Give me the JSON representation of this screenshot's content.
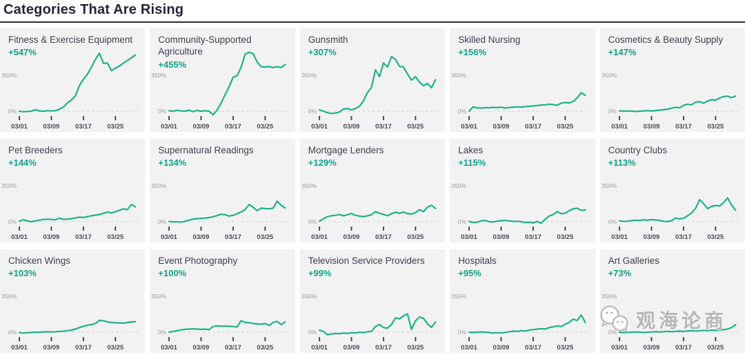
{
  "page": {
    "title": "Categories That Are Rising"
  },
  "watermark": {
    "text": "观海论商"
  },
  "colors": {
    "line": "#1eb287",
    "percent_text": "#12a284",
    "card_background": "#f2f2f3",
    "title_text": "#3e3e52",
    "header_text": "#23233a"
  },
  "axis": {
    "y_top_label": "350%",
    "y_zero_label": "0%",
    "x_ticks": [
      "03/01",
      "03/09",
      "03/17",
      "03/25"
    ]
  },
  "chart_data": [
    {
      "type": "line",
      "title": "Fitness & Exercise Equipment",
      "change": "+547%",
      "values": [
        0,
        -5,
        -3,
        0,
        15,
        3,
        0,
        5,
        2,
        5,
        20,
        40,
        80,
        110,
        150,
        250,
        310,
        360,
        430,
        505,
        565,
        465,
        470,
        395,
        420,
        440,
        470,
        495,
        520,
        547
      ]
    },
    {
      "type": "line",
      "title": "Community-Supported Agriculture",
      "change": "+455%",
      "values": [
        5,
        0,
        8,
        3,
        0,
        10,
        -5,
        8,
        0,
        5,
        0,
        -35,
        10,
        80,
        160,
        240,
        330,
        345,
        430,
        555,
        575,
        560,
        480,
        435,
        430,
        435,
        425,
        435,
        425,
        455
      ]
    },
    {
      "type": "line",
      "title": "Gunsmith",
      "change": "+307%",
      "values": [
        13,
        0,
        -15,
        -22,
        -18,
        -8,
        20,
        27,
        13,
        25,
        47,
        100,
        182,
        230,
        404,
        337,
        471,
        430,
        532,
        505,
        437,
        430,
        363,
        303,
        337,
        283,
        249,
        270,
        229,
        307
      ]
    },
    {
      "type": "line",
      "title": "Skilled Nursing",
      "change": "+156%",
      "values": [
        0,
        42,
        33,
        30,
        35,
        32,
        38,
        34,
        40,
        30,
        36,
        40,
        42,
        40,
        45,
        48,
        52,
        55,
        60,
        62,
        68,
        64,
        58,
        78,
        85,
        80,
        95,
        130,
        180,
        156
      ]
    },
    {
      "type": "line",
      "title": "Cosmetics & Beauty Supply",
      "change": "+147%",
      "values": [
        3,
        0,
        2,
        0,
        -3,
        0,
        3,
        5,
        3,
        6,
        10,
        14,
        20,
        28,
        38,
        32,
        58,
        68,
        62,
        88,
        92,
        78,
        98,
        112,
        108,
        128,
        142,
        147,
        132,
        147
      ]
    },
    {
      "type": "line",
      "title": "Pet Breeders",
      "change": "+144%",
      "values": [
        5,
        18,
        8,
        0,
        8,
        15,
        22,
        25,
        22,
        18,
        35,
        22,
        25,
        30,
        38,
        45,
        42,
        50,
        58,
        64,
        70,
        82,
        95,
        85,
        97,
        112,
        125,
        118,
        168,
        144
      ]
    },
    {
      "type": "line",
      "title": "Supernatural Readings",
      "change": "+134%",
      "values": [
        3,
        -3,
        0,
        -5,
        5,
        15,
        25,
        30,
        32,
        35,
        40,
        48,
        60,
        72,
        68,
        55,
        62,
        78,
        95,
        118,
        168,
        140,
        108,
        132,
        128,
        125,
        132,
        200,
        160,
        134
      ]
    },
    {
      "type": "line",
      "title": "Mortgage Lenders",
      "change": "+129%",
      "values": [
        5,
        28,
        50,
        58,
        62,
        70,
        58,
        68,
        80,
        62,
        55,
        50,
        58,
        68,
        98,
        82,
        72,
        58,
        78,
        92,
        82,
        95,
        78,
        75,
        88,
        118,
        98,
        142,
        160,
        129
      ]
    },
    {
      "type": "line",
      "title": "Lakes",
      "change": "+115%",
      "values": [
        3,
        -8,
        -5,
        8,
        12,
        0,
        -3,
        5,
        10,
        12,
        8,
        3,
        5,
        0,
        -8,
        -5,
        -12,
        3,
        -15,
        25,
        55,
        70,
        98,
        78,
        82,
        108,
        125,
        132,
        110,
        115
      ]
    },
    {
      "type": "line",
      "title": "Country Clubs",
      "change": "+113%",
      "values": [
        8,
        3,
        5,
        10,
        15,
        12,
        18,
        15,
        20,
        18,
        12,
        5,
        0,
        10,
        35,
        28,
        32,
        58,
        85,
        130,
        215,
        175,
        128,
        148,
        158,
        152,
        185,
        232,
        162,
        113
      ]
    },
    {
      "type": "line",
      "title": "Chicken Wings",
      "change": "+103%",
      "values": [
        -5,
        -8,
        -5,
        -3,
        0,
        0,
        3,
        5,
        3,
        5,
        8,
        10,
        15,
        20,
        30,
        45,
        58,
        68,
        75,
        85,
        115,
        112,
        100,
        95,
        92,
        90,
        88,
        95,
        100,
        103
      ]
    },
    {
      "type": "line",
      "title": "Event Photography",
      "change": "+100%",
      "values": [
        0,
        8,
        15,
        22,
        28,
        30,
        32,
        30,
        28,
        30,
        25,
        55,
        62,
        58,
        60,
        58,
        55,
        52,
        112,
        95,
        92,
        85,
        80,
        78,
        85,
        65,
        95,
        105,
        75,
        100
      ]
    },
    {
      "type": "line",
      "title": "Television Service Providers",
      "change": "+99%",
      "values": [
        20,
        8,
        -25,
        -18,
        -12,
        -15,
        -8,
        -12,
        -5,
        -8,
        0,
        -5,
        5,
        8,
        55,
        75,
        45,
        40,
        75,
        140,
        130,
        160,
        180,
        27,
        110,
        148,
        135,
        81,
        47,
        99
      ]
    },
    {
      "type": "line",
      "title": "Hospitals",
      "change": "+95%",
      "values": [
        0,
        -3,
        0,
        3,
        0,
        -3,
        -8,
        -5,
        -8,
        -3,
        5,
        10,
        8,
        15,
        12,
        20,
        25,
        30,
        35,
        30,
        45,
        52,
        62,
        55,
        78,
        95,
        128,
        114,
        168,
        95
      ]
    },
    {
      "type": "line",
      "title": "Art Galleries",
      "change": "+73%",
      "values": [
        0,
        -5,
        -3,
        0,
        3,
        0,
        -3,
        0,
        3,
        5,
        3,
        5,
        8,
        5,
        8,
        10,
        8,
        12,
        15,
        12,
        15,
        18,
        15,
        20,
        18,
        22,
        25,
        30,
        45,
        73
      ]
    }
  ]
}
